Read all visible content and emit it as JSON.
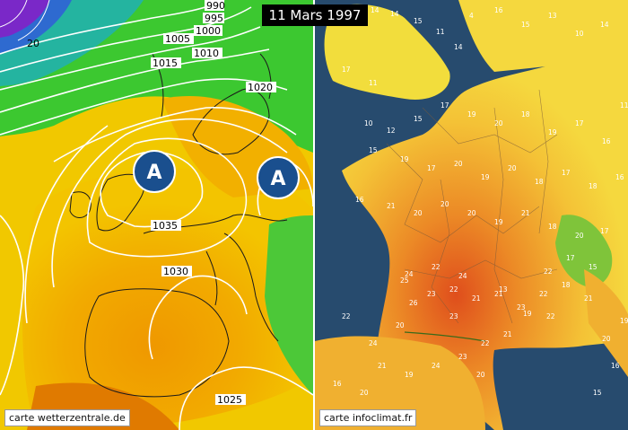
{
  "title": "11 Mars 1997",
  "left_map": {
    "credit": "carte wetterzentrale.de",
    "high_pressure_symbol": "A",
    "isobars": [
      "990",
      "995",
      "1000",
      "1005",
      "1010",
      "1015",
      "1020",
      "1035",
      "1030",
      "1025",
      "20"
    ],
    "colors": {
      "sea_yellow": "#f0c400",
      "orange": "#f0a000",
      "green": "#38c030",
      "purple": "#7a28c8",
      "marker": "#1a4f8e"
    }
  },
  "right_map": {
    "credit": "carte infoclimat.fr",
    "colors": {
      "sea": "#274b6e",
      "land_yellow": "#f5d23a",
      "land_orange": "#ef9a2a",
      "land_red": "#e0551e",
      "alps_green": "#7fc43a"
    },
    "temperature_readings": [
      "18",
      "14",
      "14",
      "15",
      "11",
      "14",
      "17",
      "11",
      "4",
      "16",
      "15",
      "13",
      "10",
      "14",
      "10",
      "12",
      "15",
      "17",
      "19",
      "20",
      "18",
      "19",
      "17",
      "16",
      "15",
      "19",
      "17",
      "20",
      "19",
      "20",
      "18",
      "17",
      "18",
      "16",
      "16",
      "21",
      "20",
      "20",
      "20",
      "19",
      "21",
      "18",
      "20",
      "17",
      "17",
      "15",
      "24",
      "22",
      "23",
      "26",
      "22",
      "21",
      "23",
      "21",
      "23",
      "24",
      "22",
      "20",
      "24",
      "22",
      "21",
      "19",
      "24",
      "23",
      "22",
      "21",
      "20",
      "19",
      "22",
      "13",
      "25",
      "18",
      "22",
      "21",
      "20",
      "16",
      "20",
      "16",
      "15",
      "19",
      "11"
    ]
  }
}
